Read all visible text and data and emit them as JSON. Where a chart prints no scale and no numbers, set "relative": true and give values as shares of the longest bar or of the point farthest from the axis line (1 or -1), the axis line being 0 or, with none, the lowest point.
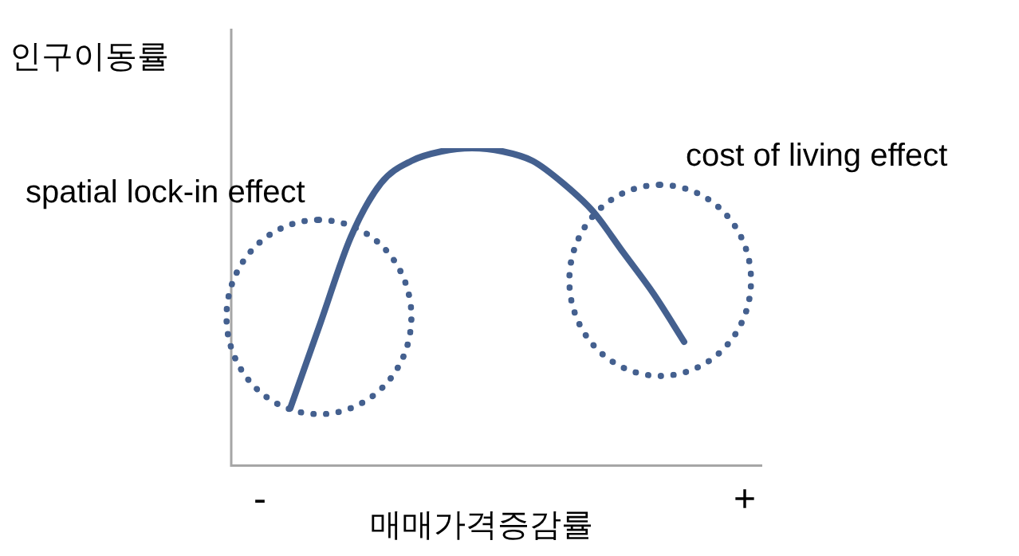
{
  "chart_data": {
    "type": "line",
    "relative": true,
    "xlabel": "매매가격증감률",
    "ylabel": "인구이동률",
    "categories": [
      "-",
      null,
      null,
      null,
      null,
      null,
      null,
      null,
      null,
      null,
      null,
      null,
      null,
      null,
      null,
      null,
      "+"
    ],
    "series": [
      {
        "color": "#44608f",
        "values": [
          null,
          0.18,
          0.45,
          0.72,
          0.89,
          0.96,
          0.99,
          1,
          0.99,
          0.96,
          0.89,
          0.8,
          0.67,
          0.54,
          0.39,
          null,
          null
        ]
      }
    ],
    "annotations": [
      "spatial lock-in effect",
      "cost of living effect"
    ],
    "grid": false,
    "legend": false,
    "marker": "none",
    "line_style": "solid"
  }
}
